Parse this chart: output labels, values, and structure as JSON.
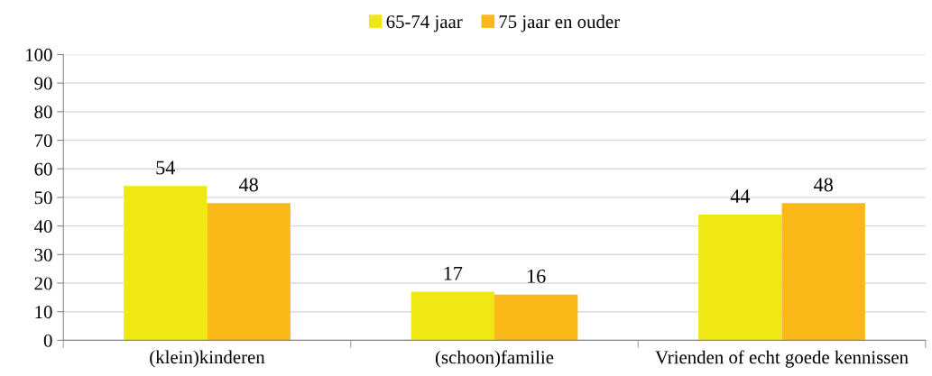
{
  "chart_data": {
    "type": "bar",
    "categories": [
      "(klein)kinderen",
      "(schoon)familie",
      "Vrienden of echt goede kennissen"
    ],
    "series": [
      {
        "name": "65-74 jaar",
        "color": "#f0e814",
        "values": [
          54,
          17,
          44
        ]
      },
      {
        "name": "75 jaar en ouder",
        "color": "#fbb919",
        "values": [
          48,
          16,
          48
        ]
      }
    ],
    "ylim": [
      0,
      100
    ],
    "yticks": [
      0,
      10,
      20,
      30,
      40,
      50,
      60,
      70,
      80,
      90,
      100
    ],
    "grid": "y",
    "legend": "top",
    "data_labels": true
  }
}
